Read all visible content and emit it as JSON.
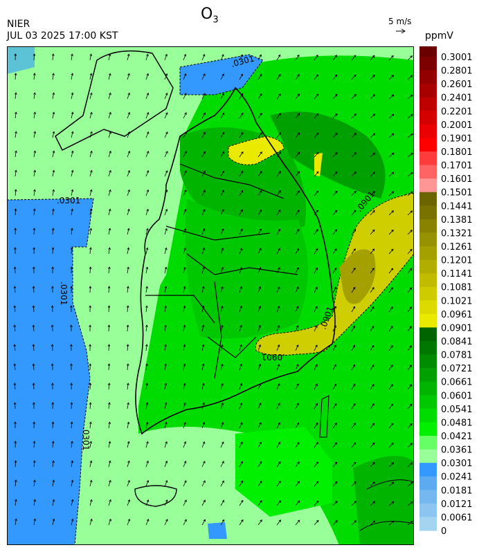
{
  "header": {
    "title": "O",
    "title_subscript": "3",
    "source": "NIER",
    "time": "JUL 03 2025 17:00 KST",
    "wind_scale": "5 m/s"
  },
  "colorbar": {
    "unit": "ppmV",
    "labels": [
      "0.3001",
      "0.2801",
      "0.2601",
      "0.2401",
      "0.2201",
      "0.2001",
      "0.1901",
      "0.1801",
      "0.1701",
      "0.1601",
      "0.1501",
      "0.1441",
      "0.1381",
      "0.1321",
      "0.1261",
      "0.1201",
      "0.1141",
      "0.1081",
      "0.1021",
      "0.0961",
      "0.0901",
      "0.0841",
      "0.0781",
      "0.0721",
      "0.0661",
      "0.0601",
      "0.0541",
      "0.0481",
      "0.0421",
      "0.0361",
      "0.0301",
      "0.0241",
      "0.0181",
      "0.0121",
      "0.0061",
      "0"
    ],
    "colors": [
      "#6a0000",
      "#7d0000",
      "#920000",
      "#a80000",
      "#be0000",
      "#d40000",
      "#ea0000",
      "#ff0000",
      "#ff3c3c",
      "#ff6464",
      "#ff9696",
      "#6b6400",
      "#7a7200",
      "#888200",
      "#969200",
      "#a4a000",
      "#b2ae00",
      "#c0bc00",
      "#cecb00",
      "#dcda00",
      "#eaea00",
      "#006400",
      "#007800",
      "#008c00",
      "#00a000",
      "#00b400",
      "#00c800",
      "#00dc00",
      "#00f000",
      "#66ff66",
      "#99ff99",
      "#3399ff",
      "#5caaf0",
      "#74b8f0",
      "#8cc6f0",
      "#a4d4f0"
    ]
  },
  "map": {
    "contour_labels": [
      ".0301",
      ".0301",
      ".0301",
      ".0301",
      ".0901",
      ".0901",
      ".0901"
    ]
  }
}
